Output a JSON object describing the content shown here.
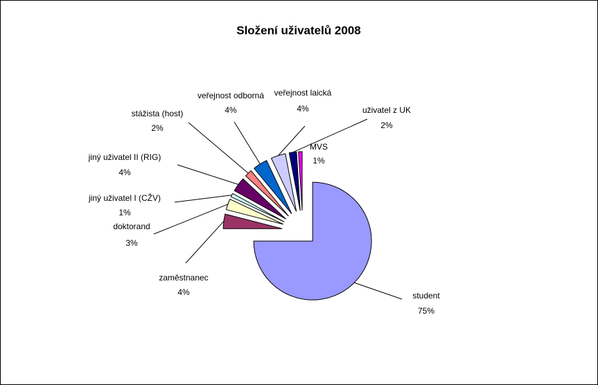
{
  "chart_data": {
    "type": "pie",
    "title": "Složení uživatelů 2008",
    "categories": [
      "student",
      "zaměstnanec",
      "doktorand",
      "jiný uživatel I (CŽV)",
      "jiný uživatel II (RIG)",
      "stážista (host)",
      "veřejnost odborná",
      "veřejnost laická",
      "uživatel z UK",
      "MVS"
    ],
    "values": [
      75,
      4,
      3,
      1,
      4,
      2,
      4,
      4,
      2,
      1
    ],
    "value_labels": [
      "75%",
      "4%",
      "3%",
      "1%",
      "4%",
      "2%",
      "4%",
      "4%",
      "2%",
      "1%"
    ],
    "colors": [
      "#9999ff",
      "#993366",
      "#ffffcc",
      "#ccffff",
      "#660066",
      "#ff8080",
      "#0066cc",
      "#ccccff",
      "#000080",
      "#ff00ff"
    ]
  }
}
